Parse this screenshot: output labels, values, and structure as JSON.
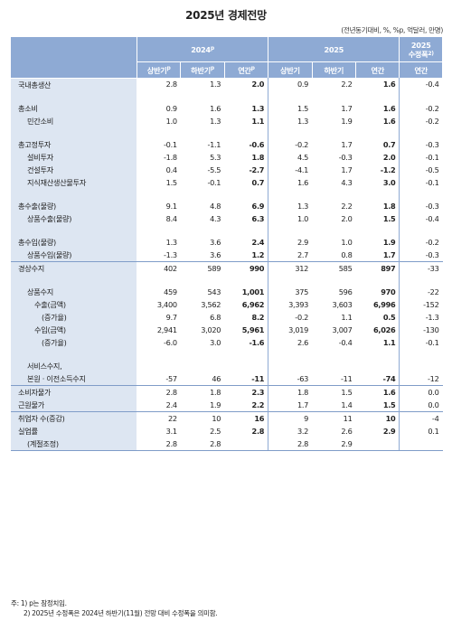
{
  "title": "2025년 경제전망",
  "unit": "(전년동기대비, %, %p, 억달러, 만명)",
  "header": {
    "y2024": "2024",
    "y2024_sup": "p",
    "y2025": "2025",
    "revised_line1": "2025",
    "revised_line2": "수정폭",
    "revised_sup": "2)",
    "h1": "상반기",
    "h1_sup": "p",
    "h2": "하반기",
    "h2_sup": "p",
    "annual": "연간",
    "annual_sup": "p",
    "h1_25": "상반기",
    "h2_25": "하반기",
    "annual_25": "연간",
    "annual_rev": "연간"
  },
  "rows": [
    {
      "label": "국내총생산",
      "indent": 0,
      "v": [
        "2.8",
        "1.3",
        "2.0",
        "0.9",
        "2.2",
        "1.6",
        "-0.4"
      ]
    },
    {
      "label": "총소비",
      "indent": 0,
      "v": [
        "0.9",
        "1.6",
        "1.3",
        "1.5",
        "1.7",
        "1.6",
        "-0.2"
      ]
    },
    {
      "label": "민간소비",
      "indent": 1,
      "v": [
        "1.0",
        "1.3",
        "1.1",
        "1.3",
        "1.9",
        "1.6",
        "-0.2"
      ]
    },
    {
      "label": "총고정투자",
      "indent": 0,
      "v": [
        "-0.1",
        "-1.1",
        "-0.6",
        "-0.2",
        "1.7",
        "0.7",
        "-0.3"
      ]
    },
    {
      "label": "설비투자",
      "indent": 1,
      "v": [
        "-1.8",
        "5.3",
        "1.8",
        "4.5",
        "-0.3",
        "2.0",
        "-0.1"
      ]
    },
    {
      "label": "건설투자",
      "indent": 1,
      "v": [
        "0.4",
        "-5.5",
        "-2.7",
        "-4.1",
        "1.7",
        "-1.2",
        "-0.5"
      ]
    },
    {
      "label": "지식재산생산물투자",
      "indent": 1,
      "v": [
        "1.5",
        "-0.1",
        "0.7",
        "1.6",
        "4.3",
        "3.0",
        "-0.1"
      ]
    },
    {
      "label": "총수출(물량)",
      "indent": 0,
      "v": [
        "9.1",
        "4.8",
        "6.9",
        "1.3",
        "2.2",
        "1.8",
        "-0.3"
      ]
    },
    {
      "label": "상품수출(물량)",
      "indent": 1,
      "v": [
        "8.4",
        "4.3",
        "6.3",
        "1.0",
        "2.0",
        "1.5",
        "-0.4"
      ]
    },
    {
      "label": "총수입(물량)",
      "indent": 0,
      "v": [
        "1.3",
        "3.6",
        "2.4",
        "2.9",
        "1.0",
        "1.9",
        "-0.2"
      ]
    },
    {
      "label": "상품수입(물량)",
      "indent": 1,
      "v": [
        "-1.3",
        "3.6",
        "1.2",
        "2.7",
        "0.8",
        "1.7",
        "-0.3"
      ]
    },
    {
      "label": "경상수지",
      "indent": 0,
      "v": [
        "402",
        "589",
        "990",
        "312",
        "585",
        "897",
        "-33"
      ]
    },
    {
      "label": "상품수지",
      "indent": 1,
      "v": [
        "459",
        "543",
        "1,001",
        "375",
        "596",
        "970",
        "-22"
      ]
    },
    {
      "label": "수출(금액)",
      "indent": 2,
      "v": [
        "3,400",
        "3,562",
        "6,962",
        "3,393",
        "3,603",
        "6,996",
        "-152"
      ]
    },
    {
      "label": "(증가율)",
      "indent": 3,
      "v": [
        "9.7",
        "6.8",
        "8.2",
        "-0.2",
        "1.1",
        "0.5",
        "-1.3"
      ]
    },
    {
      "label": "수입(금액)",
      "indent": 2,
      "v": [
        "2,941",
        "3,020",
        "5,961",
        "3,019",
        "3,007",
        "6,026",
        "-130"
      ]
    },
    {
      "label": "(증가율)",
      "indent": 3,
      "v": [
        "-6.0",
        "3.0",
        "-1.6",
        "2.6",
        "-0.4",
        "1.1",
        "-0.1"
      ]
    },
    {
      "label": "서비스수지,",
      "indent": 1,
      "v": [
        "",
        "",
        "",
        "",
        "",
        "",
        ""
      ]
    },
    {
      "label": "본원 · 이전소득수지",
      "indent": 1,
      "v": [
        "-57",
        "46",
        "-11",
        "-63",
        "-11",
        "-74",
        "-12"
      ]
    },
    {
      "label": "소비자물가",
      "indent": 0,
      "v": [
        "2.8",
        "1.8",
        "2.3",
        "1.8",
        "1.5",
        "1.6",
        "0.0"
      ]
    },
    {
      "label": "근원물가",
      "indent": 0,
      "v": [
        "2.4",
        "1.9",
        "2.2",
        "1.7",
        "1.4",
        "1.5",
        "0.0"
      ]
    },
    {
      "label": "취업자 수(증감)",
      "indent": 0,
      "v": [
        "22",
        "10",
        "16",
        "9",
        "11",
        "10",
        "-4"
      ]
    },
    {
      "label": "실업률",
      "indent": 0,
      "v": [
        "3.1",
        "2.5",
        "2.8",
        "3.2",
        "2.6",
        "2.9",
        "0.1"
      ]
    },
    {
      "label": "(계절조정)",
      "indent": 1,
      "v": [
        "2.8",
        "2.8",
        "",
        "2.8",
        "2.9",
        "",
        ""
      ]
    }
  ],
  "notes": {
    "n1": "주: 1) p는 잠정치임.",
    "n2": "2) 2025년 수정폭은 2024년 하반기(11월) 전망 대비 수정폭을 의미함."
  }
}
